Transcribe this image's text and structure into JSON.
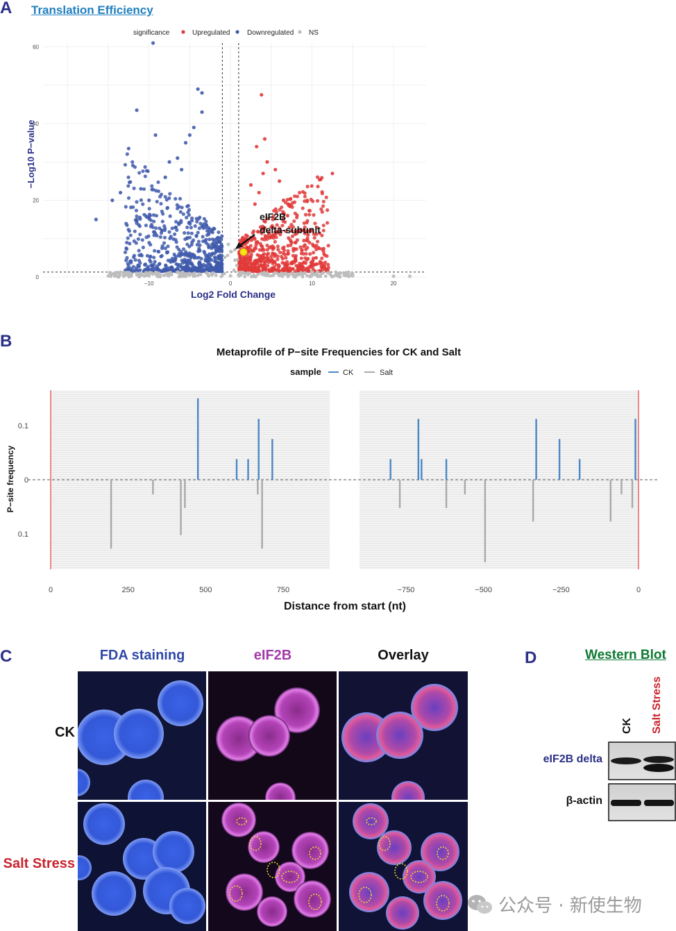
{
  "panelA": {
    "letter": "A",
    "title": "Translation Efficiency",
    "legend": {
      "title": "significance",
      "items": [
        "Upregulated",
        "Downregulated",
        "NS"
      ],
      "colors": [
        "#e23a3a",
        "#3f5aab",
        "#bdbdbd"
      ]
    },
    "ylabel": "−Log10 P−value",
    "xlabel": "Log2 Fold Change",
    "yticks": [
      "0",
      "20",
      "40",
      "60"
    ],
    "xticks": [
      "−10",
      "0",
      "10",
      "20"
    ],
    "annotation_line1": "eIF2B",
    "annotation_line2": "delta-subunit",
    "highlight_color": "#f7e417"
  },
  "panelB": {
    "letter": "B",
    "title": "Metaprofile of P−site Frequencies for CK and Salt",
    "legend_title": "sample",
    "legend_items": [
      "CK",
      "Salt"
    ],
    "colors": {
      "CK": "#4a86c5",
      "Salt": "#a8a8a8"
    },
    "ylabel": "P−site frequency",
    "yticks": [
      "0.1",
      "0",
      "0.1"
    ],
    "left_xticks": [
      "0",
      "250",
      "500",
      "750"
    ],
    "right_xticks": [
      "−750",
      "−500",
      "−250",
      "0"
    ],
    "xlabel": "Distance from start (nt)"
  },
  "panelC": {
    "letter": "C",
    "columns": [
      "FDA staining",
      "eIF2B",
      "Overlay"
    ],
    "column_colors": [
      "#2f48a8",
      "#a23aa8",
      "#111111"
    ],
    "rows": [
      "CK",
      "Salt Stress"
    ],
    "row_colors": [
      "#111111",
      "#c8242f"
    ]
  },
  "panelD": {
    "letter": "D",
    "title": "Western Blot",
    "lanes": [
      "CK",
      "Salt Stress"
    ],
    "lane_colors": [
      "#111111",
      "#c8242f"
    ],
    "bands": [
      "eIF2B delta",
      "β-actin"
    ],
    "band_colors": [
      "#2b2f86",
      "#111111"
    ]
  },
  "watermark": "公众号 · 新使生物",
  "chart_data": [
    {
      "type": "scatter",
      "title": "Translation Efficiency",
      "xlabel": "Log2 Fold Change",
      "ylabel": "−Log10 P−value",
      "xlim": [
        -23,
        24
      ],
      "ylim": [
        0,
        61
      ],
      "grid": true,
      "legend_position": "top",
      "series": [
        {
          "name": "Upregulated",
          "x": [
            3.8,
            12.5,
            4.2,
            6,
            3.5,
            4.5,
            9.5,
            3,
            7,
            5,
            8,
            10.5,
            11,
            4,
            6.5,
            3.2,
            5.5,
            7.5,
            9,
            2.5,
            1.6
          ],
          "y": [
            47.5,
            27,
            36,
            25,
            22,
            30,
            11,
            19,
            16,
            13,
            9,
            5,
            4,
            27,
            20,
            34,
            28,
            12,
            8,
            24,
            6
          ]
        },
        {
          "name": "Downregulated",
          "x": [
            -9.5,
            -11.5,
            -9.2,
            -12.5,
            -14.5,
            -16.5,
            -4,
            -3.5,
            -5,
            -6,
            -7.5,
            -11,
            -8,
            -10,
            -4.5,
            -3.5,
            -6.5,
            -5.5,
            -13.5
          ],
          "y": [
            61,
            43.5,
            37,
            33.5,
            20,
            15,
            49,
            48,
            37,
            28,
            30,
            23,
            26,
            20,
            39,
            43,
            31,
            35,
            22
          ]
        },
        {
          "name": "NS",
          "x": [
            -15,
            -13,
            -11,
            -10,
            -6,
            -3,
            -1,
            0,
            1,
            2,
            15,
            20,
            22
          ],
          "y": [
            0.3,
            0.4,
            0.6,
            0.3,
            0.8,
            1.2,
            0.5,
            0.3,
            0.6,
            1.1,
            0.3,
            0.2,
            0.2
          ]
        },
        {
          "name": "eIF2B delta-subunit",
          "x": [
            1.6
          ],
          "y": [
            6.5
          ]
        }
      ]
    },
    {
      "type": "bar",
      "title": "Metaprofile of P−site Frequencies for CK and Salt",
      "xlabel": "Distance from start (nt)",
      "ylabel": "P−site frequency",
      "ylim": [
        -0.165,
        0.165
      ],
      "legend_position": "top",
      "panels": [
        {
          "region": "start",
          "xlim": [
            0,
            900
          ],
          "series": [
            {
              "name": "CK",
              "x": [
                475,
                600,
                637,
                671,
                715
              ],
              "values": [
                0.15,
                0.038,
                0.038,
                0.112,
                0.075
              ]
            },
            {
              "name": "Salt",
              "x": [
                195,
                330,
                420,
                433,
                668,
                682
              ],
              "values": [
                -0.127,
                -0.027,
                -0.102,
                -0.052,
                -0.027,
                -0.127
              ]
            }
          ]
        },
        {
          "region": "stop",
          "xlim": [
            -900,
            0
          ],
          "series": [
            {
              "name": "CK",
              "x": [
                -800,
                -710,
                -700,
                -620,
                -330,
                -255,
                -190,
                -10
              ],
              "values": [
                0.038,
                0.112,
                0.038,
                0.038,
                0.112,
                0.075,
                0.038,
                0.112
              ]
            },
            {
              "name": "Salt",
              "x": [
                -770,
                -620,
                -560,
                -495,
                -340,
                -90,
                -55,
                -20
              ],
              "values": [
                -0.052,
                -0.052,
                -0.027,
                -0.152,
                -0.077,
                -0.077,
                -0.027,
                -0.052
              ]
            }
          ]
        }
      ]
    }
  ]
}
